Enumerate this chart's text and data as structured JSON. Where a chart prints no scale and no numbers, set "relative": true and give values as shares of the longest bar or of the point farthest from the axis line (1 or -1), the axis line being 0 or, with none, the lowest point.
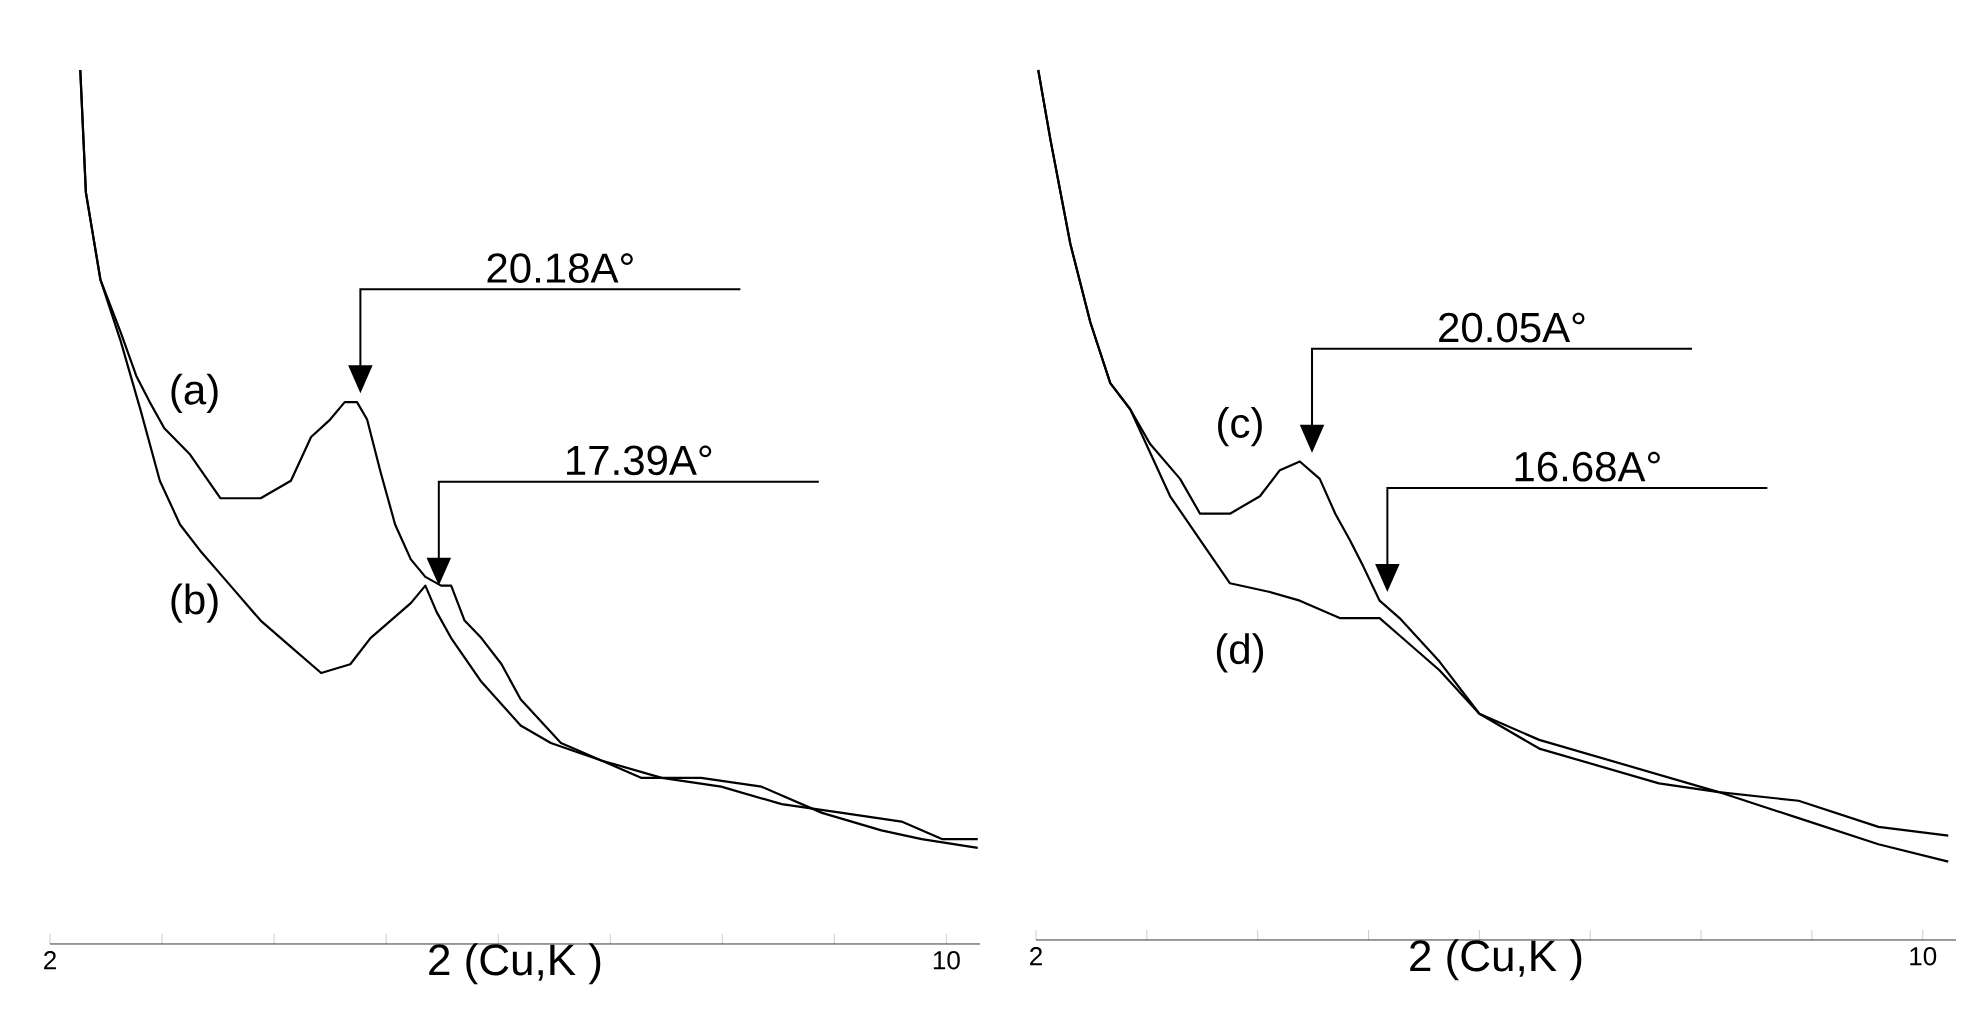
{
  "chart_data": [
    {
      "type": "line",
      "xlabel": "2 (Cu,K )",
      "relative": true,
      "tick_labels": "x",
      "xlim": [
        2,
        10.3
      ],
      "xticks": [
        2,
        {
          "value": 3,
          "label": null
        },
        {
          "value": 4,
          "label": null
        },
        {
          "value": 5,
          "label": null
        },
        {
          "value": 6,
          "label": null
        },
        {
          "value": 7,
          "label": null
        },
        {
          "value": 8,
          "label": null
        },
        {
          "value": 9,
          "label": null
        },
        10
      ],
      "series": [
        {
          "name": "(a)",
          "color": "#000000",
          "x": [
            2.27,
            2.32,
            2.45,
            2.63,
            2.77,
            2.89,
            3.02,
            3.25,
            3.52,
            3.66,
            3.88,
            4.15,
            4.33,
            4.5,
            4.63,
            4.74,
            4.83,
            4.95,
            5.08,
            5.22,
            5.35,
            5.49,
            5.58,
            5.7,
            5.85,
            6.03,
            6.2,
            6.56,
            6.92,
            7.28,
            7.81,
            8.35,
            8.89,
            9.42,
            9.78,
            10.28
          ],
          "values": [
            1.0,
            0.86,
            0.76,
            0.7,
            0.65,
            0.62,
            0.59,
            0.56,
            0.51,
            0.51,
            0.51,
            0.53,
            0.58,
            0.6,
            0.62,
            0.62,
            0.6,
            0.54,
            0.48,
            0.44,
            0.42,
            0.41,
            0.41,
            0.37,
            0.35,
            0.32,
            0.28,
            0.23,
            0.21,
            0.19,
            0.19,
            0.18,
            0.15,
            0.13,
            0.12,
            0.11
          ]
        },
        {
          "name": "(b)",
          "color": "#000000",
          "x": [
            2.27,
            2.32,
            2.45,
            2.63,
            2.81,
            2.98,
            3.16,
            3.34,
            3.61,
            3.88,
            4.15,
            4.42,
            4.68,
            4.86,
            5.04,
            5.22,
            5.35,
            5.45,
            5.58,
            5.85,
            6.2,
            6.47,
            6.92,
            7.46,
            7.99,
            8.53,
            9.07,
            9.6,
            9.96,
            10.28
          ],
          "values": [
            1.0,
            0.86,
            0.76,
            0.69,
            0.61,
            0.53,
            0.48,
            0.45,
            0.41,
            0.37,
            0.34,
            0.31,
            0.32,
            0.35,
            0.37,
            0.39,
            0.41,
            0.38,
            0.35,
            0.3,
            0.25,
            0.23,
            0.21,
            0.19,
            0.18,
            0.16,
            0.15,
            0.14,
            0.12,
            0.12
          ]
        }
      ],
      "annotations": [
        "20.18A°",
        "17.39A°"
      ]
    },
    {
      "type": "line",
      "xlabel": "2 (Cu,K )",
      "relative": true,
      "tick_labels": "x",
      "xlim": [
        2,
        10.3
      ],
      "xticks": [
        2,
        {
          "value": 3,
          "label": null
        },
        {
          "value": 4,
          "label": null
        },
        {
          "value": 5,
          "label": null
        },
        {
          "value": 6,
          "label": null
        },
        {
          "value": 7,
          "label": null
        },
        {
          "value": 8,
          "label": null
        },
        {
          "value": 9,
          "label": null
        },
        10
      ],
      "series": [
        {
          "name": "(c)",
          "color": "#000000",
          "x": [
            2.02,
            2.13,
            2.31,
            2.49,
            2.67,
            2.85,
            3.03,
            3.3,
            3.48,
            3.75,
            4.02,
            4.2,
            4.38,
            4.56,
            4.7,
            4.83,
            4.95,
            5.1,
            5.28,
            5.64,
            6.0,
            6.54,
            7.08,
            7.62,
            8.16,
            8.88,
            9.6,
            10.23
          ],
          "values": [
            1.0,
            0.92,
            0.8,
            0.71,
            0.64,
            0.61,
            0.57,
            0.53,
            0.49,
            0.49,
            0.51,
            0.54,
            0.55,
            0.53,
            0.49,
            0.46,
            0.43,
            0.39,
            0.37,
            0.32,
            0.26,
            0.23,
            0.21,
            0.19,
            0.17,
            0.16,
            0.13,
            0.12
          ]
        },
        {
          "name": "(d)",
          "color": "#000000",
          "x": [
            2.02,
            2.13,
            2.31,
            2.49,
            2.67,
            2.85,
            3.03,
            3.21,
            3.48,
            3.75,
            4.11,
            4.38,
            4.74,
            5.1,
            5.28,
            5.64,
            6.0,
            6.54,
            7.08,
            7.62,
            8.16,
            8.88,
            9.6,
            10.23
          ],
          "values": [
            1.0,
            0.92,
            0.8,
            0.71,
            0.64,
            0.61,
            0.56,
            0.51,
            0.46,
            0.41,
            0.4,
            0.39,
            0.37,
            0.37,
            0.35,
            0.31,
            0.26,
            0.22,
            0.2,
            0.18,
            0.17,
            0.14,
            0.11,
            0.09
          ]
        }
      ],
      "annotations": [
        "20.05A°",
        "16.68A°"
      ]
    }
  ]
}
